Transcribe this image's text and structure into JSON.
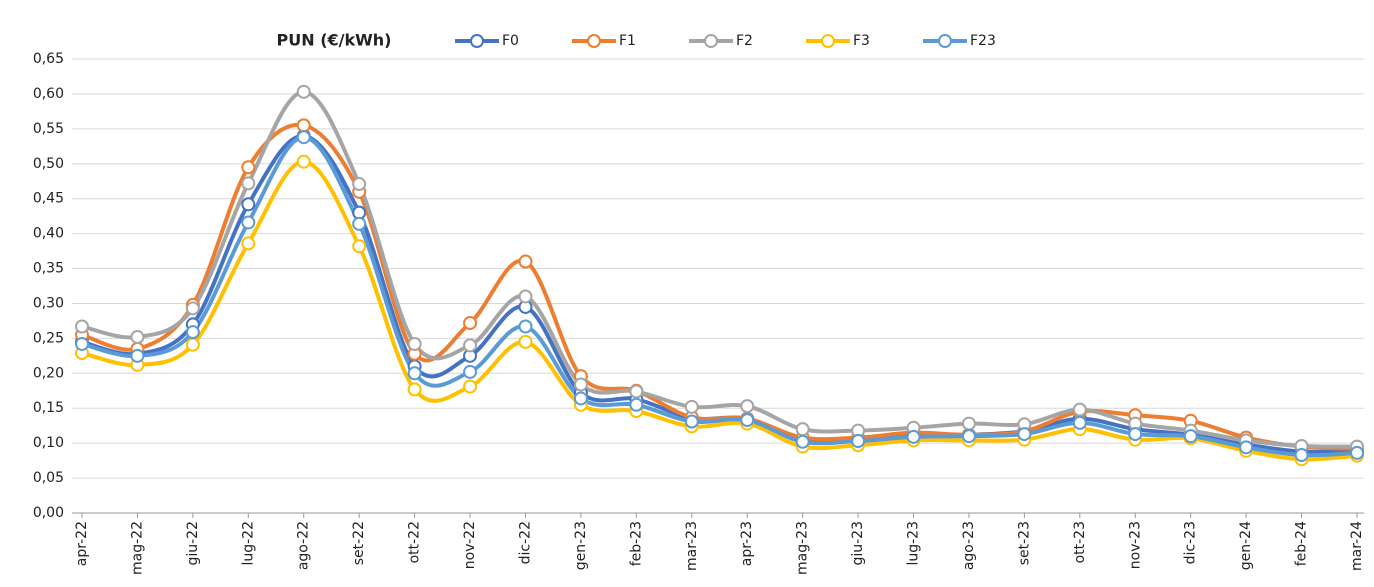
{
  "chart_data": {
    "type": "line",
    "title": "PUN (€/kWh)",
    "categories": [
      "apr-22",
      "mag-22",
      "giu-22",
      "lug-22",
      "ago-22",
      "set-22",
      "ott-22",
      "nov-22",
      "dic-22",
      "gen-23",
      "feb-23",
      "mar-23",
      "apr-23",
      "mag-23",
      "giu-23",
      "lug-23",
      "ago-23",
      "set-23",
      "ott-23",
      "nov-23",
      "dic-23",
      "gen-24",
      "feb-24",
      "mar-24"
    ],
    "series": [
      {
        "name": "F0",
        "color": "#4472c4",
        "values": [
          0.245,
          0.228,
          0.27,
          0.442,
          0.54,
          0.43,
          0.21,
          0.225,
          0.295,
          0.172,
          0.163,
          0.136,
          0.135,
          0.105,
          0.107,
          0.112,
          0.112,
          0.117,
          0.135,
          0.12,
          0.112,
          0.098,
          0.088,
          0.089
        ]
      },
      {
        "name": "F1",
        "color": "#ed7d31",
        "values": [
          0.255,
          0.235,
          0.298,
          0.495,
          0.555,
          0.46,
          0.228,
          0.272,
          0.36,
          0.196,
          0.175,
          0.137,
          0.135,
          0.108,
          0.108,
          0.115,
          0.112,
          0.117,
          0.145,
          0.14,
          0.132,
          0.108,
          0.095,
          0.092
        ]
      },
      {
        "name": "F2",
        "color": "#a5a5a5",
        "values": [
          0.267,
          0.252,
          0.293,
          0.472,
          0.603,
          0.471,
          0.242,
          0.24,
          0.31,
          0.184,
          0.174,
          0.152,
          0.153,
          0.12,
          0.118,
          0.122,
          0.128,
          0.127,
          0.148,
          0.128,
          0.118,
          0.104,
          0.096,
          0.095
        ]
      },
      {
        "name": "F3",
        "color": "#ffc000",
        "values": [
          0.229,
          0.212,
          0.241,
          0.386,
          0.503,
          0.382,
          0.177,
          0.181,
          0.245,
          0.155,
          0.146,
          0.124,
          0.128,
          0.095,
          0.097,
          0.104,
          0.104,
          0.105,
          0.12,
          0.105,
          0.107,
          0.089,
          0.077,
          0.082
        ]
      },
      {
        "name": "F23",
        "color": "#5b9bd5",
        "values": [
          0.242,
          0.225,
          0.259,
          0.416,
          0.538,
          0.414,
          0.2,
          0.202,
          0.267,
          0.164,
          0.155,
          0.131,
          0.133,
          0.102,
          0.103,
          0.109,
          0.11,
          0.113,
          0.129,
          0.113,
          0.11,
          0.094,
          0.083,
          0.086
        ]
      }
    ],
    "ylim": [
      0,
      0.65
    ],
    "yticks": [
      {
        "value": 0,
        "label": "0,00"
      },
      {
        "value": 0.05,
        "label": "0,05"
      },
      {
        "value": 0.1,
        "label": "0,10"
      },
      {
        "value": 0.15,
        "label": "0,15"
      },
      {
        "value": 0.2,
        "label": "0,20"
      },
      {
        "value": 0.25,
        "label": "0,25"
      },
      {
        "value": 0.3,
        "label": "0,30"
      },
      {
        "value": 0.35,
        "label": "0,35"
      },
      {
        "value": 0.4,
        "label": "0,40"
      },
      {
        "value": 0.45,
        "label": "0,45"
      },
      {
        "value": 0.5,
        "label": "0,50"
      },
      {
        "value": 0.55,
        "label": "0,55"
      },
      {
        "value": 0.6,
        "label": "0,60"
      },
      {
        "value": 0.65,
        "label": "0,65"
      }
    ],
    "grid": true,
    "smooth": true,
    "legend": "top"
  }
}
